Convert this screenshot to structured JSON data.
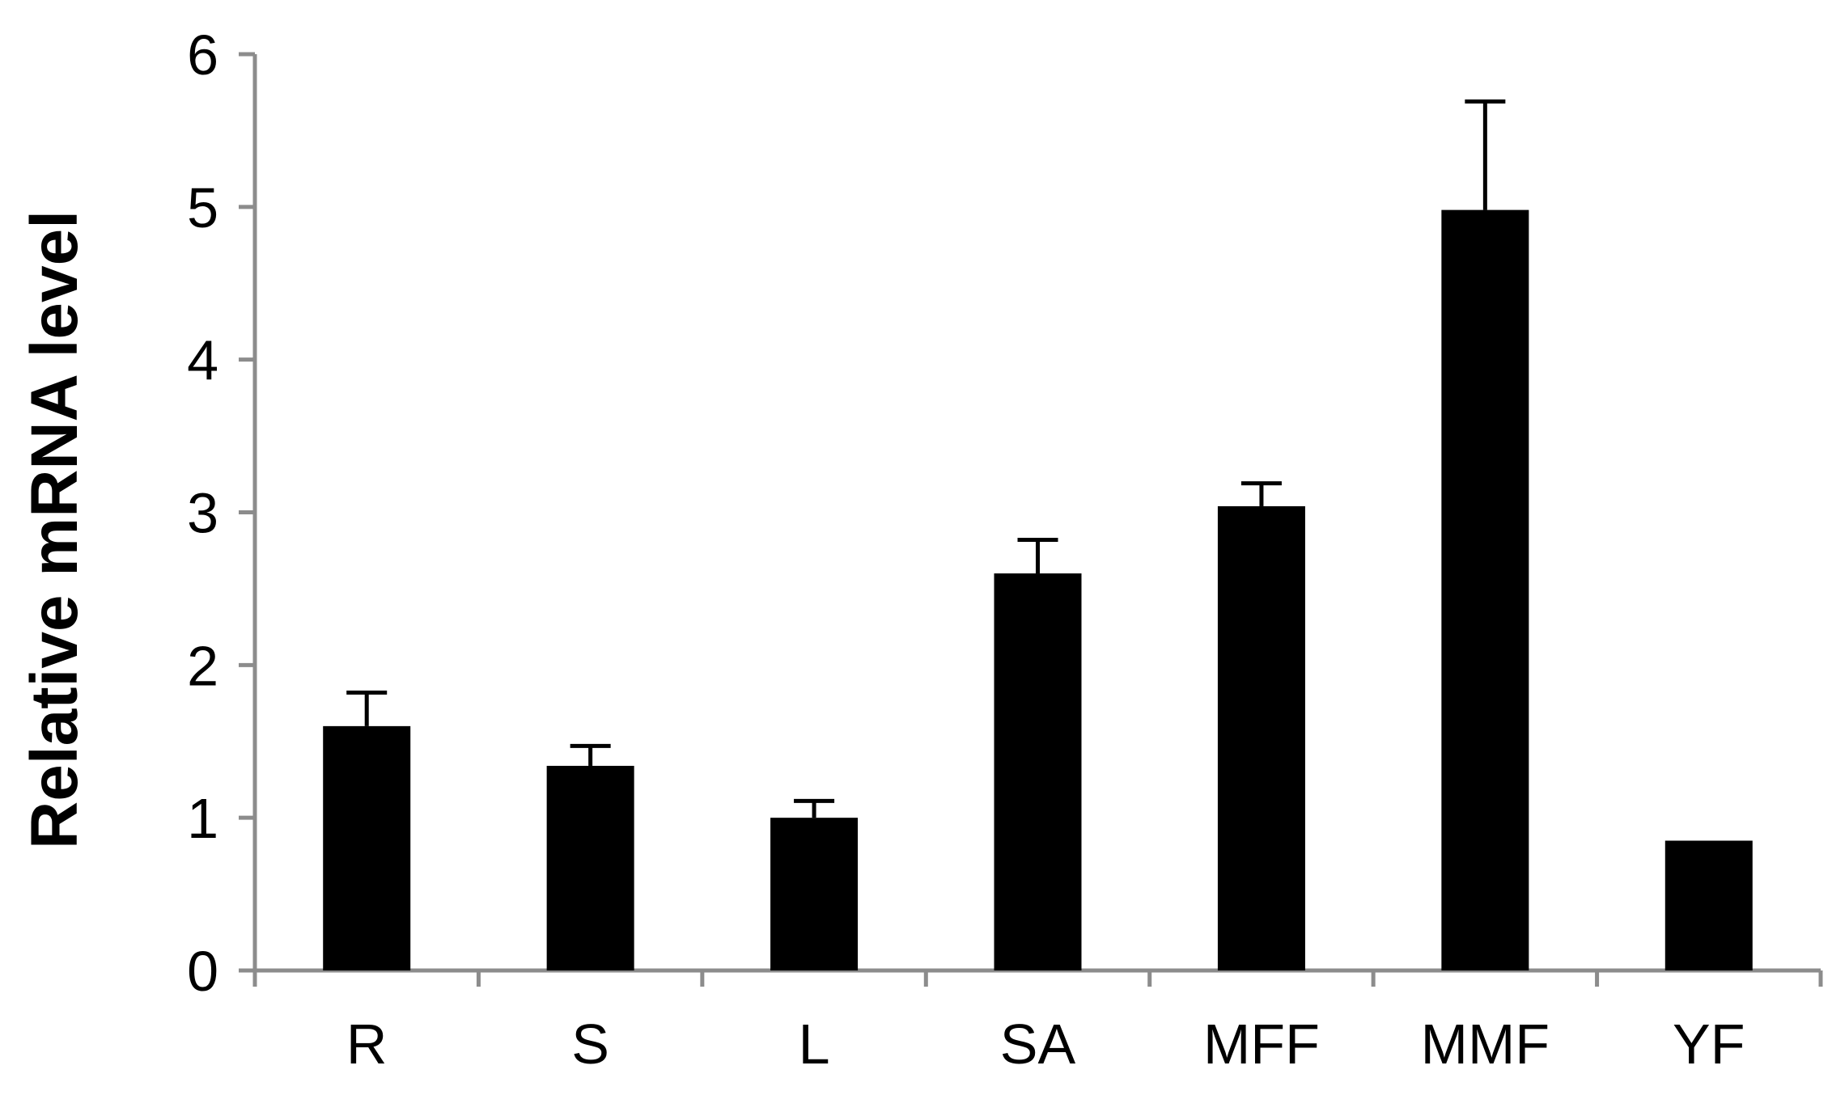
{
  "chart_data": {
    "type": "bar",
    "title": "",
    "xlabel": "",
    "ylabel": "Relative mRNA level",
    "ylim": [
      0,
      6
    ],
    "yticks": [
      0,
      1,
      2,
      3,
      4,
      5,
      6
    ],
    "grid": false,
    "legend": "none",
    "categories": [
      "R",
      "S",
      "L",
      "SA",
      "MFF",
      "MMF",
      "YF"
    ],
    "values": [
      1.6,
      1.34,
      1.0,
      2.6,
      3.04,
      4.98,
      0.85
    ],
    "errors": [
      0.22,
      0.13,
      0.11,
      0.22,
      0.15,
      0.71,
      0.0
    ],
    "colors": {
      "bar": "#000000",
      "axis": "#8c8c8c"
    }
  }
}
